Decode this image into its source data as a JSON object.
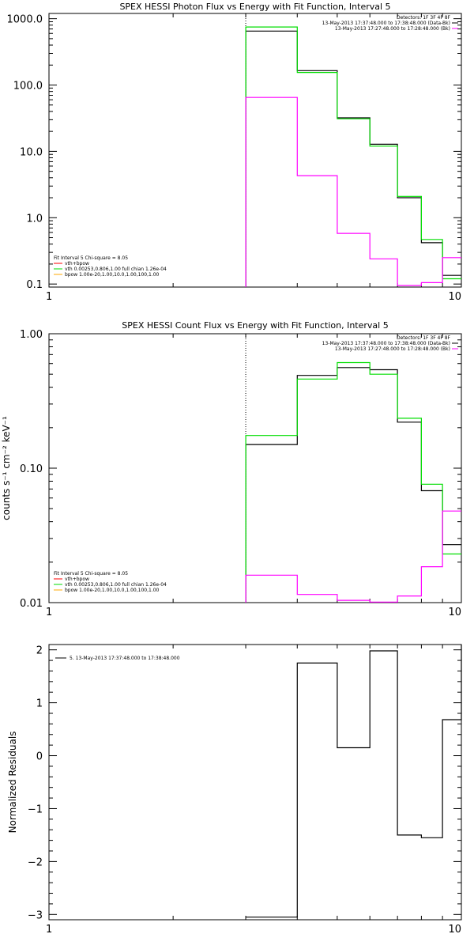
{
  "colors": {
    "data": "#000000",
    "bkg": "#ff00ff",
    "fit": "#00dd00",
    "vth": "#00dd00",
    "bpow": "#ffaa00",
    "total": "#ff0000",
    "background": "#ffffff"
  },
  "chart_data": [
    {
      "type": "line",
      "title": "SPEX HESSI Photon Flux vs Energy with Fit Function, Interval 5",
      "xlabel": "",
      "ylabel": "",
      "xscale": "log",
      "yscale": "log",
      "xlim": [
        1,
        10
      ],
      "ylim": [
        0.09,
        1200
      ],
      "xticks": [
        1,
        10
      ],
      "xticklabels": [
        "1",
        "10"
      ],
      "yticks": [
        0.1,
        1,
        10,
        100,
        1000
      ],
      "yticklabels": [
        "0.1",
        "1.0",
        "10.0",
        "100.0",
        "1000.0"
      ],
      "bin_edges": [
        3,
        4,
        5,
        6,
        7,
        8,
        9,
        10
      ],
      "marker_x": 3,
      "series": [
        {
          "role": "data",
          "color": "#000000",
          "values": [
            650,
            165,
            32,
            12.8,
            2.0,
            0.42,
            0.135
          ]
        },
        {
          "role": "fit",
          "color": "#00dd00",
          "values": [
            750,
            155,
            31,
            12.0,
            2.1,
            0.47,
            0.12
          ]
        },
        {
          "role": "background",
          "color": "#ff00ff",
          "values": [
            65,
            4.3,
            0.58,
            0.24,
            0.095,
            0.105,
            0.25
          ]
        }
      ],
      "legend_top": {
        "lines": [
          "Detectors: 1F 3F 4F 8F",
          "13-May-2013 17:37:48.000 to 17:38:48.000 (Data-Bk)",
          "13-May-2013 17:27:48.000 to 17:28:48.000 (Bk)"
        ],
        "colors": [
          "#000000",
          "#000000",
          "#ff00ff"
        ]
      },
      "legend_bottom": {
        "lines": [
          "Fit Interval 5   Chi-square = 8.05",
          "vth+bpow",
          "vth 0.00253,0.806,1.00   full chian 1.26e-04",
          "bpow 1.00e-20,1.00,10.0,1.00,100,1.00"
        ],
        "colors": [
          "",
          "#ff0000",
          "#00dd00",
          "#ffaa00"
        ]
      }
    },
    {
      "type": "line",
      "title": "SPEX HESSI Count Flux vs Energy with Fit Function, Interval 5",
      "xlabel": "",
      "ylabel": "counts s⁻¹ cm⁻² keV⁻¹",
      "xscale": "log",
      "yscale": "log",
      "xlim": [
        1,
        10
      ],
      "ylim": [
        0.01,
        1.0
      ],
      "xticks": [
        1,
        10
      ],
      "xticklabels": [
        "1",
        "10"
      ],
      "yticks": [
        0.01,
        0.1,
        1.0
      ],
      "yticklabels": [
        "0.01",
        "0.10",
        "1.00"
      ],
      "bin_edges": [
        3,
        4,
        5,
        6,
        7,
        8,
        9,
        10
      ],
      "marker_x": 3,
      "series": [
        {
          "role": "data",
          "color": "#000000",
          "values": [
            0.15,
            0.49,
            0.56,
            0.54,
            0.22,
            0.068,
            0.027
          ]
        },
        {
          "role": "fit",
          "color": "#00dd00",
          "values": [
            0.175,
            0.46,
            0.61,
            0.5,
            0.235,
            0.076,
            0.023
          ]
        },
        {
          "role": "background",
          "color": "#ff00ff",
          "values": [
            0.016,
            0.0115,
            0.0104,
            0.0101,
            0.0112,
            0.0185,
            0.048
          ]
        }
      ],
      "legend_top": {
        "lines": [
          "Detectors: 1F 3F 4F 8F",
          "13-May-2013 17:37:48.000 to 17:38:48.000 (Data-Bk)",
          "13-May-2013 17:27:48.000 to 17:28:48.000 (Bk)"
        ],
        "colors": [
          "#000000",
          "#000000",
          "#ff00ff"
        ]
      },
      "legend_bottom": {
        "lines": [
          "Fit Interval 5   Chi-square = 8.05",
          "vth+bpow",
          "vth 0.00253,0.806,1.00   full chian 1.26e-04",
          "bpow 1.00e-20,1.00,10.0,1.00,100,1.00"
        ],
        "colors": [
          "",
          "#ff0000",
          "#00dd00",
          "#ffaa00"
        ]
      }
    },
    {
      "type": "line",
      "title": "",
      "xlabel": "",
      "ylabel": "Normalized Residuals",
      "xscale": "log",
      "yscale": "linear",
      "xlim": [
        1,
        10
      ],
      "ylim": [
        -3.1,
        2.1
      ],
      "xticks": [
        1,
        10
      ],
      "xticklabels": [
        "1",
        "10"
      ],
      "yticks": [
        -3,
        -2,
        -1,
        0,
        1,
        2
      ],
      "yticklabels": [
        "−3",
        "−2",
        "−1",
        "0",
        "1",
        "2"
      ],
      "bin_edges": [
        3,
        4,
        5,
        6,
        7,
        8,
        9,
        10
      ],
      "series": [
        {
          "role": "residuals",
          "color": "#000000",
          "values": [
            -3.05,
            1.75,
            0.15,
            1.98,
            -1.5,
            -1.55,
            0.68
          ]
        }
      ],
      "legend_top": {
        "lines": [
          "5. 13-May-2013 17:37:48.000 to 17:38:48.000"
        ],
        "colors": [
          "#000000"
        ]
      }
    }
  ]
}
